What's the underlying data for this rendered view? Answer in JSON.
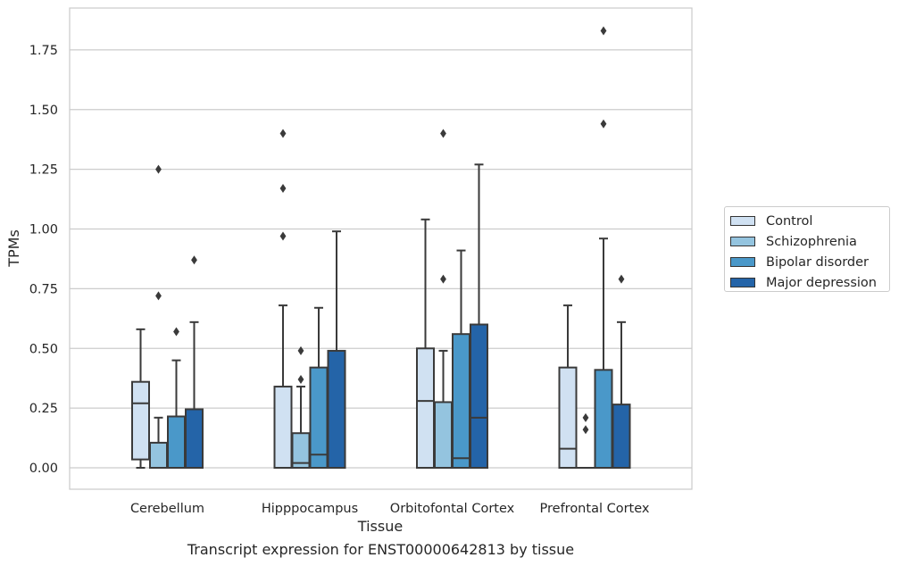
{
  "chart_data": {
    "type": "box",
    "title": "",
    "caption": "Transcript expression for ENST00000642813 by tissue",
    "xlabel": "Tissue",
    "ylabel": "TPMs",
    "ylim": [
      -0.09,
      1.93
    ],
    "yticks": [
      "0.00",
      "0.25",
      "0.50",
      "0.75",
      "1.00",
      "1.25",
      "1.50",
      "1.75"
    ],
    "ytick_values": [
      0,
      0.25,
      0.5,
      0.75,
      1.0,
      1.25,
      1.5,
      1.75
    ],
    "grid": true,
    "legend_position": "right",
    "categories": [
      "Cerebellum",
      "Hipppocampus",
      "Orbitofontal Cortex",
      "Prefrontal Cortex"
    ],
    "series": [
      {
        "name": "Control",
        "color": "#d0e1f2",
        "boxes": [
          {
            "whislo": 0.0,
            "q1": 0.035,
            "med": 0.27,
            "q3": 0.36,
            "whishi": 0.58,
            "fliers": []
          },
          {
            "whislo": 0.0,
            "q1": 0.0,
            "med": 0.0,
            "q3": 0.34,
            "whishi": 0.68,
            "fliers": [
              0.97,
              1.17,
              1.4
            ]
          },
          {
            "whislo": 0.0,
            "q1": 0.0,
            "med": 0.28,
            "q3": 0.5,
            "whishi": 1.04,
            "fliers": []
          },
          {
            "whislo": 0.0,
            "q1": 0.0,
            "med": 0.08,
            "q3": 0.42,
            "whishi": 0.68,
            "fliers": []
          }
        ]
      },
      {
        "name": "Schizophrenia",
        "color": "#94c4df",
        "boxes": [
          {
            "whislo": 0.0,
            "q1": 0.0,
            "med": 0.0,
            "q3": 0.105,
            "whishi": 0.21,
            "fliers": [
              0.72,
              1.25
            ]
          },
          {
            "whislo": 0.0,
            "q1": 0.0,
            "med": 0.02,
            "q3": 0.145,
            "whishi": 0.34,
            "fliers": [
              0.37,
              0.49
            ]
          },
          {
            "whislo": 0.0,
            "q1": 0.0,
            "med": 0.0,
            "q3": 0.275,
            "whishi": 0.49,
            "fliers": [
              0.79,
              1.4
            ]
          },
          {
            "whislo": 0.0,
            "q1": 0.0,
            "med": 0.0,
            "q3": 0.0,
            "whishi": 0.0,
            "fliers": [
              0.16,
              0.21
            ]
          }
        ]
      },
      {
        "name": "Bipolar disorder",
        "color": "#4a98c9",
        "boxes": [
          {
            "whislo": 0.0,
            "q1": 0.0,
            "med": 0.0,
            "q3": 0.215,
            "whishi": 0.45,
            "fliers": [
              0.57
            ]
          },
          {
            "whislo": 0.0,
            "q1": 0.0,
            "med": 0.055,
            "q3": 0.42,
            "whishi": 0.67,
            "fliers": []
          },
          {
            "whislo": 0.0,
            "q1": 0.0,
            "med": 0.04,
            "q3": 0.56,
            "whishi": 0.91,
            "fliers": []
          },
          {
            "whislo": 0.0,
            "q1": 0.0,
            "med": 0.0,
            "q3": 0.41,
            "whishi": 0.96,
            "fliers": [
              1.44,
              1.83
            ]
          }
        ]
      },
      {
        "name": "Major depression",
        "color": "#2464a8",
        "boxes": [
          {
            "whislo": 0.0,
            "q1": 0.0,
            "med": 0.0,
            "q3": 0.245,
            "whishi": 0.61,
            "fliers": [
              0.87
            ]
          },
          {
            "whislo": 0.0,
            "q1": 0.0,
            "med": 0.0,
            "q3": 0.49,
            "whishi": 0.99,
            "fliers": []
          },
          {
            "whislo": 0.0,
            "q1": 0.0,
            "med": 0.21,
            "q3": 0.6,
            "whishi": 1.27,
            "fliers": []
          },
          {
            "whislo": 0.0,
            "q1": 0.0,
            "med": 0.0,
            "q3": 0.265,
            "whishi": 0.61,
            "fliers": [
              0.79
            ]
          }
        ]
      }
    ]
  }
}
